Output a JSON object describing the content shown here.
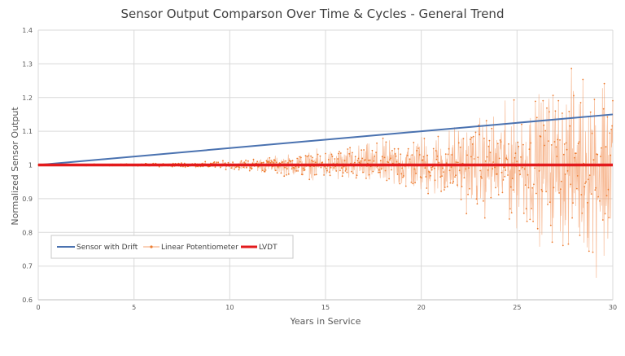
{
  "chart_data": {
    "type": "line",
    "title": "Sensor Output Comparson Over Time & Cycles - General Trend",
    "xlabel": "Years in Service",
    "ylabel": "Normalized Sensor Output",
    "xlim": [
      0,
      30
    ],
    "ylim": [
      0.6,
      1.4
    ],
    "x_ticks": [
      0,
      5,
      10,
      15,
      20,
      25,
      30
    ],
    "y_ticks": [
      0.6,
      0.7,
      0.8,
      0.9,
      1,
      1.1,
      1.2,
      1.3,
      1.4
    ],
    "grid": true,
    "legend_position": "bottom-left",
    "series": [
      {
        "name": "Sensor with Drift",
        "style": "line",
        "color": "#4a72b0",
        "x": [
          0,
          30
        ],
        "y": [
          1.0,
          1.15
        ]
      },
      {
        "name": "Linear Potentiometer",
        "style": "line-markers",
        "color": "#f4a372",
        "noise_points_per_year": 50,
        "noise_envelope": {
          "x": [
            0,
            5,
            8,
            10,
            12,
            15,
            18,
            20,
            22,
            25,
            28,
            30
          ],
          "amplitude": [
            0.001,
            0.003,
            0.008,
            0.012,
            0.025,
            0.045,
            0.07,
            0.09,
            0.12,
            0.18,
            0.26,
            0.32
          ]
        }
      },
      {
        "name": "LVDT",
        "style": "line",
        "color": "#e31a1c",
        "x": [
          0,
          30
        ],
        "y": [
          1.0,
          1.0
        ]
      }
    ]
  }
}
